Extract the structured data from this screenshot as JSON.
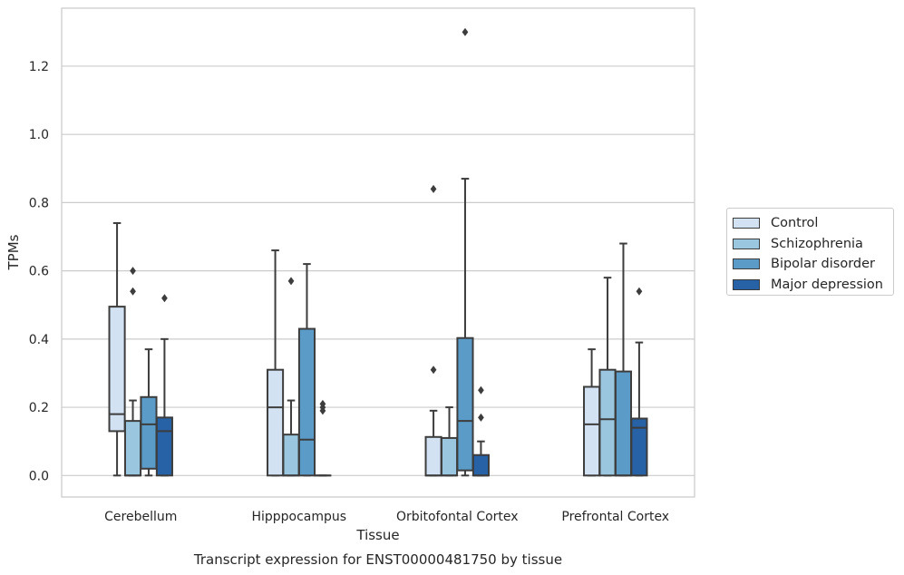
{
  "chart_data": {
    "type": "box",
    "title": "Transcript expression for ENST00000481750 by tissue",
    "xlabel": "Tissue",
    "ylabel": "TPMs",
    "ylim": [
      -0.063,
      1.37
    ],
    "yticks": [
      "0.0",
      "0.2",
      "0.4",
      "0.6",
      "0.8",
      "1.0",
      "1.2"
    ],
    "grid": true,
    "legend_position": "right",
    "categories": [
      "Cerebellum",
      "Hipppocampus",
      "Orbitofontal Cortex",
      "Prefrontal Cortex"
    ],
    "series": [
      {
        "name": "Control",
        "color": "#d2e2f2",
        "boxes": [
          {
            "min": 0.0,
            "q1": 0.13,
            "median": 0.18,
            "q3": 0.495,
            "max": 0.74,
            "outliers": []
          },
          {
            "min": 0.0,
            "q1": 0.0,
            "median": 0.2,
            "q3": 0.31,
            "max": 0.66,
            "outliers": []
          },
          {
            "min": 0.0,
            "q1": 0.0,
            "median": 0.0,
            "q3": 0.113,
            "max": 0.19,
            "outliers": [
              0.31,
              0.84
            ]
          },
          {
            "min": 0.0,
            "q1": 0.0,
            "median": 0.15,
            "q3": 0.26,
            "max": 0.37,
            "outliers": []
          }
        ]
      },
      {
        "name": "Schizophrenia",
        "color": "#9ac7df",
        "boxes": [
          {
            "min": 0.0,
            "q1": 0.0,
            "median": 0.0,
            "q3": 0.16,
            "max": 0.22,
            "outliers": [
              0.54,
              0.6
            ]
          },
          {
            "min": 0.0,
            "q1": 0.0,
            "median": 0.0,
            "q3": 0.12,
            "max": 0.22,
            "outliers": [
              0.57
            ]
          },
          {
            "min": 0.0,
            "q1": 0.0,
            "median": 0.0,
            "q3": 0.11,
            "max": 0.2,
            "outliers": []
          },
          {
            "min": 0.0,
            "q1": 0.0,
            "median": 0.165,
            "q3": 0.31,
            "max": 0.58,
            "outliers": []
          }
        ]
      },
      {
        "name": "Bipolar disorder",
        "color": "#5a9bc8",
        "boxes": [
          {
            "min": 0.0,
            "q1": 0.02,
            "median": 0.15,
            "q3": 0.23,
            "max": 0.37,
            "outliers": []
          },
          {
            "min": 0.0,
            "q1": 0.0,
            "median": 0.105,
            "q3": 0.43,
            "max": 0.62,
            "outliers": []
          },
          {
            "min": 0.0,
            "q1": 0.015,
            "median": 0.16,
            "q3": 0.403,
            "max": 0.87,
            "outliers": [
              1.3
            ]
          },
          {
            "min": 0.0,
            "q1": 0.0,
            "median": 0.0,
            "q3": 0.305,
            "max": 0.68,
            "outliers": []
          }
        ]
      },
      {
        "name": "Major depression",
        "color": "#2662a5",
        "boxes": [
          {
            "min": 0.0,
            "q1": 0.0,
            "median": 0.13,
            "q3": 0.17,
            "max": 0.4,
            "outliers": [
              0.52
            ]
          },
          {
            "min": 0.0,
            "q1": 0.0,
            "median": 0.0,
            "q3": 0.0,
            "max": 0.0,
            "outliers": [
              0.19,
              0.2,
              0.21
            ]
          },
          {
            "min": 0.0,
            "q1": 0.0,
            "median": 0.0,
            "q3": 0.06,
            "max": 0.1,
            "outliers": [
              0.17,
              0.25
            ]
          },
          {
            "min": 0.0,
            "q1": 0.0,
            "median": 0.14,
            "q3": 0.167,
            "max": 0.39,
            "outliers": [
              0.54
            ]
          }
        ]
      }
    ]
  }
}
